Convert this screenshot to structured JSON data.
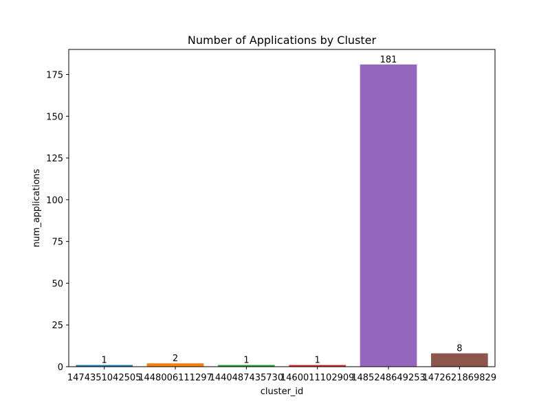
{
  "chart_data": {
    "type": "bar",
    "title": "Number of Applications by Cluster",
    "xlabel": "cluster_id",
    "ylabel": "num_applications",
    "categories": [
      "1474351042505",
      "1448006111297",
      "1440487435730",
      "1460011102909",
      "1485248649253",
      "1472621869829"
    ],
    "values": [
      1,
      2,
      1,
      1,
      181,
      8
    ],
    "data_labels": [
      "1",
      "2",
      "1",
      "1",
      "181",
      "8"
    ],
    "colors": [
      "#1f77b4",
      "#ff7f0e",
      "#2ca02c",
      "#d62728",
      "#9467bd",
      "#8c564b"
    ],
    "ylim": [
      0,
      190
    ],
    "yticks": [
      0,
      25,
      50,
      75,
      100,
      125,
      150,
      175
    ],
    "ytick_labels": [
      "0",
      "25",
      "50",
      "75",
      "100",
      "125",
      "150",
      "175"
    ],
    "grid": false,
    "legend": "none"
  }
}
